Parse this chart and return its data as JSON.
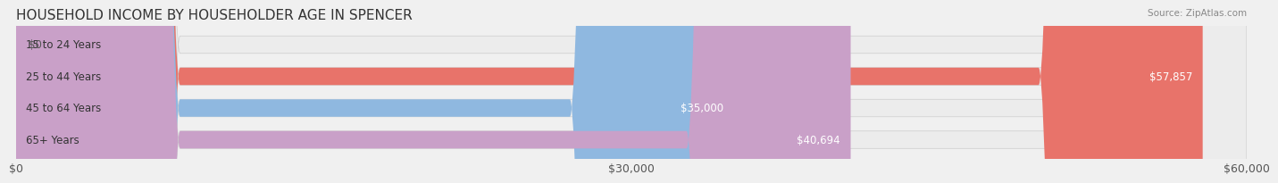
{
  "title": "HOUSEHOLD INCOME BY HOUSEHOLDER AGE IN SPENCER",
  "source": "Source: ZipAtlas.com",
  "categories": [
    "15 to 24 Years",
    "25 to 44 Years",
    "45 to 64 Years",
    "65+ Years"
  ],
  "values": [
    0,
    57857,
    35000,
    40694
  ],
  "labels": [
    "$0",
    "$57,857",
    "$35,000",
    "$40,694"
  ],
  "bar_colors": [
    "#f0c98a",
    "#e8736a",
    "#8fb8e0",
    "#c9a0c8"
  ],
  "bar_edge_colors": [
    "#d4a96a",
    "#c85a50",
    "#6090c0",
    "#a878a8"
  ],
  "background_color": "#f0f0f0",
  "bar_bg_color": "#e8e8e8",
  "xlim": [
    0,
    60000
  ],
  "xticks": [
    0,
    30000,
    60000
  ],
  "xticklabels": [
    "$0",
    "$30,000",
    "$60,000"
  ],
  "bar_height": 0.55,
  "label_inside_threshold": 20000,
  "title_fontsize": 11,
  "tick_fontsize": 9,
  "label_fontsize": 8.5,
  "category_fontsize": 8.5
}
